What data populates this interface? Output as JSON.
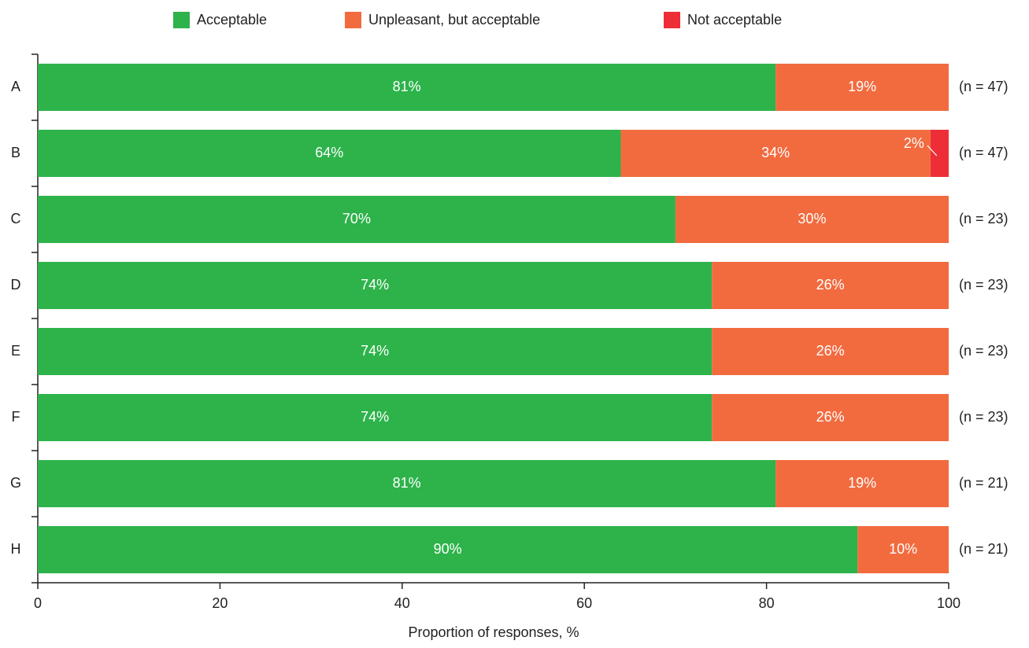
{
  "chart_data": {
    "type": "stacked-bar-horizontal",
    "x_label": "Proportion of responses, %",
    "categories": [
      "A",
      "B",
      "C",
      "D",
      "E",
      "F",
      "G",
      "H"
    ],
    "n_labels": [
      "(n = 47)",
      "(n = 47)",
      "(n = 23)",
      "(n = 23)",
      "(n = 23)",
      "(n = 23)",
      "(n = 21)",
      "(n = 21)"
    ],
    "series": [
      {
        "name": "Acceptable",
        "color": "#2db34a",
        "values": [
          81,
          64,
          70,
          74,
          74,
          74,
          81,
          90
        ],
        "value_labels": [
          "81%",
          "64%",
          "70%",
          "74%",
          "74%",
          "74%",
          "81%",
          "90%"
        ]
      },
      {
        "name": "Unpleasant, but acceptable",
        "color": "#f26b3f",
        "values": [
          19,
          34,
          30,
          26,
          26,
          26,
          19,
          10
        ],
        "value_labels": [
          "19%",
          "34%",
          "30%",
          "26%",
          "26%",
          "26%",
          "19%",
          "10%"
        ]
      },
      {
        "name": "Not acceptable",
        "color": "#ee2e36",
        "values": [
          null,
          2,
          null,
          null,
          null,
          null,
          null,
          null
        ],
        "value_labels": [
          null,
          "2%",
          null,
          null,
          null,
          null,
          null,
          null
        ]
      }
    ],
    "xlim": [
      0,
      100
    ],
    "xticks": [
      0,
      20,
      40,
      60,
      80,
      100
    ],
    "grid": false,
    "legend": "top"
  }
}
